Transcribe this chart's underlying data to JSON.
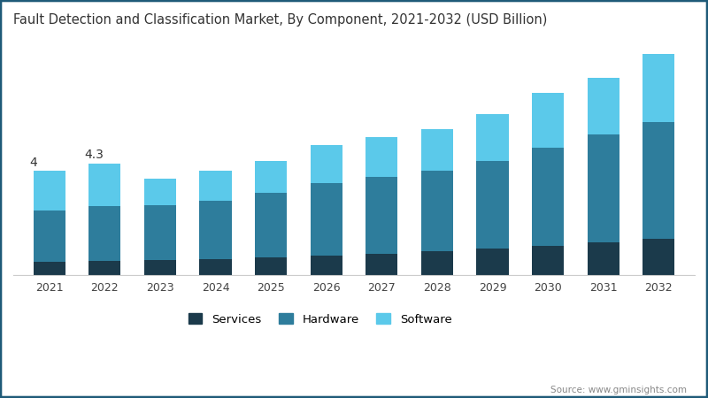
{
  "title": "Fault Detection and Classification Market, By Component, 2021-2032 (USD Billion)",
  "years": [
    2021,
    2022,
    2023,
    2024,
    2025,
    2026,
    2027,
    2028,
    2029,
    2030,
    2031,
    2032
  ],
  "services": [
    0.52,
    0.55,
    0.58,
    0.62,
    0.68,
    0.75,
    0.82,
    0.92,
    1.02,
    1.12,
    1.25,
    1.38
  ],
  "hardware": [
    1.98,
    2.12,
    2.1,
    2.25,
    2.47,
    2.8,
    2.95,
    3.08,
    3.38,
    3.78,
    4.15,
    4.52
  ],
  "software": [
    1.5,
    1.63,
    1.02,
    1.13,
    1.25,
    1.45,
    1.53,
    1.6,
    1.8,
    2.1,
    2.2,
    2.6
  ],
  "annotations": [
    {
      "year_idx": 0,
      "text": "4"
    },
    {
      "year_idx": 1,
      "text": "4.3"
    }
  ],
  "colors": {
    "services": "#1b3a4b",
    "hardware": "#2e7d9c",
    "software": "#5bc9ea"
  },
  "legend_labels": [
    "Services",
    "Hardware",
    "Software"
  ],
  "background_color": "#ffffff",
  "border_color": "#1e5a78",
  "source_text": "Source: www.gminsights.com",
  "ylim": [
    0,
    9.0
  ],
  "bar_width": 0.58
}
